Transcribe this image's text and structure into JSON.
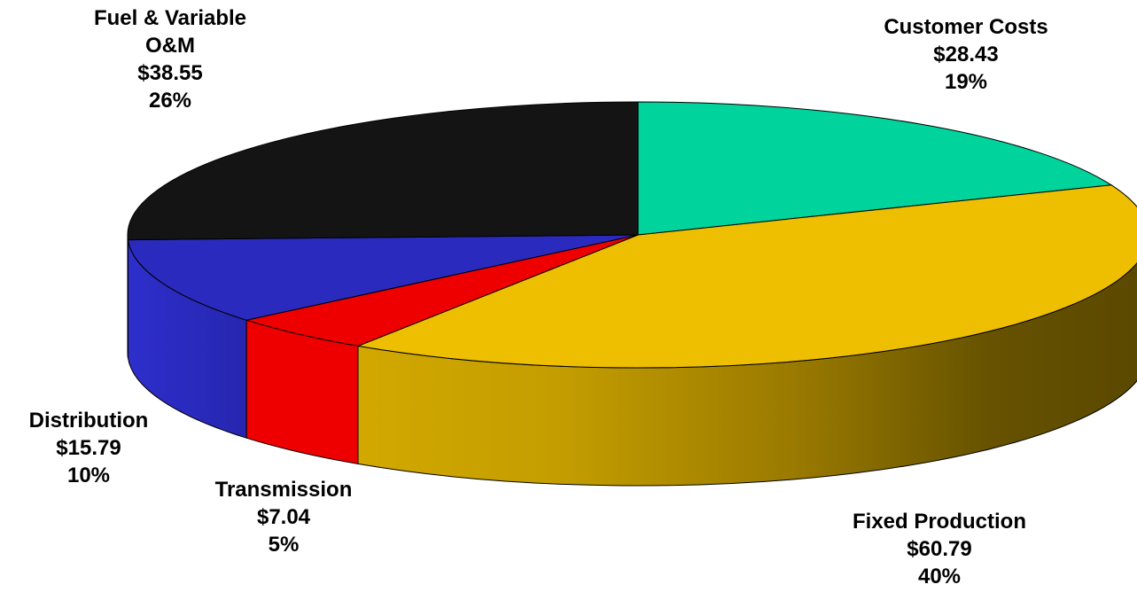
{
  "chart_data": {
    "type": "pie",
    "title": "",
    "slices": [
      {
        "label": "Customer Costs",
        "value": 28.43,
        "value_label": "$28.43",
        "percent_label": "19%",
        "color": "#00D39B"
      },
      {
        "label": "Fixed Production",
        "value": 60.79,
        "value_label": "$60.79",
        "percent_label": "40%",
        "color": "#EEBE00"
      },
      {
        "label": "Transmission",
        "value": 7.04,
        "value_label": "$7.04",
        "percent_label": "5%",
        "color": "#EE0000"
      },
      {
        "label": "Distribution",
        "value": 15.79,
        "value_label": "$15.79",
        "percent_label": "10%",
        "color": "#2A2ABE"
      },
      {
        "label": "Fuel & Variable O&M",
        "label_lines": [
          "Fuel & Variable",
          "O&M"
        ],
        "value": 38.55,
        "value_label": "$38.55",
        "percent_label": "26%",
        "color": "#141414"
      }
    ],
    "style": "3d-tilted",
    "legend": "none"
  }
}
